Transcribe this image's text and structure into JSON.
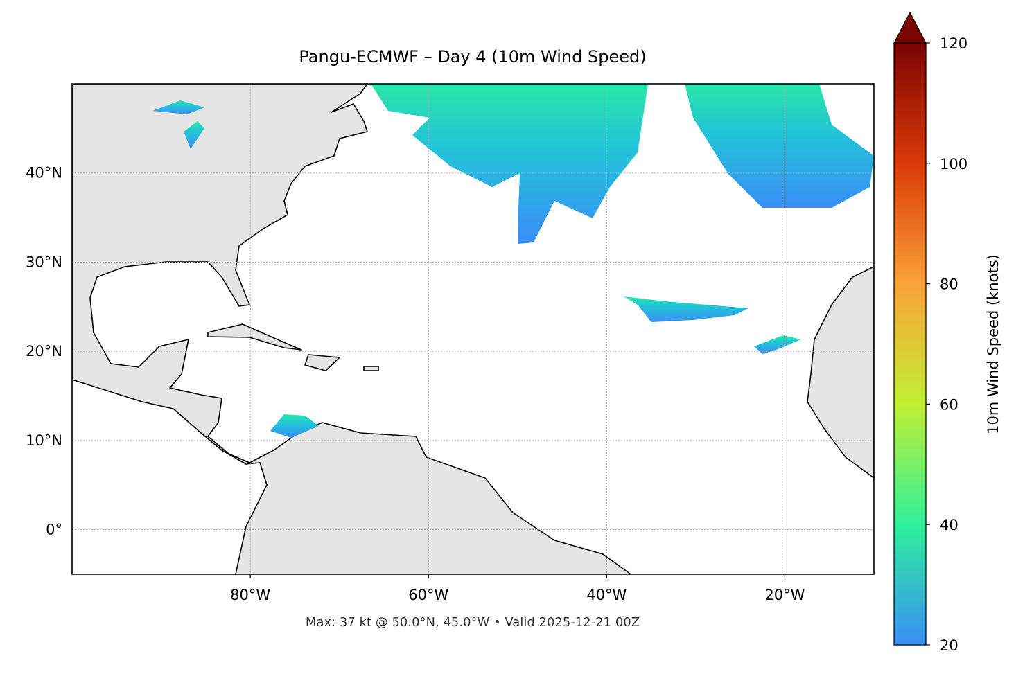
{
  "map": {
    "title": "Pangu-ECMWF – Day 4 (10m Wind Speed)",
    "footer": "Max: 37 kt @ 50.0°N, 45.0°W • Valid 2025-12-21 00Z",
    "xlim": [
      -100,
      -10
    ],
    "ylim": [
      -5,
      50
    ],
    "xticks": [
      {
        "value": -80,
        "label": "80°W"
      },
      {
        "value": -60,
        "label": "60°W"
      },
      {
        "value": -40,
        "label": "40°W"
      },
      {
        "value": -20,
        "label": "20°W"
      }
    ],
    "yticks": [
      {
        "value": 0,
        "label": "0°"
      },
      {
        "value": 10,
        "label": "10°N"
      },
      {
        "value": 20,
        "label": "20°N"
      },
      {
        "value": 30,
        "label": "30°N"
      },
      {
        "value": 40,
        "label": "40°N"
      }
    ],
    "grid": true
  },
  "colorbar": {
    "label": "10m Wind Speed (knots)",
    "lim": [
      20,
      120
    ],
    "ticks": [
      20,
      40,
      60,
      80,
      100,
      120
    ],
    "colors": [
      "#3a8ef7",
      "#2ff09a",
      "#c2ef34",
      "#fba238",
      "#da3907",
      "#7a0403"
    ],
    "extend": "max"
  }
}
